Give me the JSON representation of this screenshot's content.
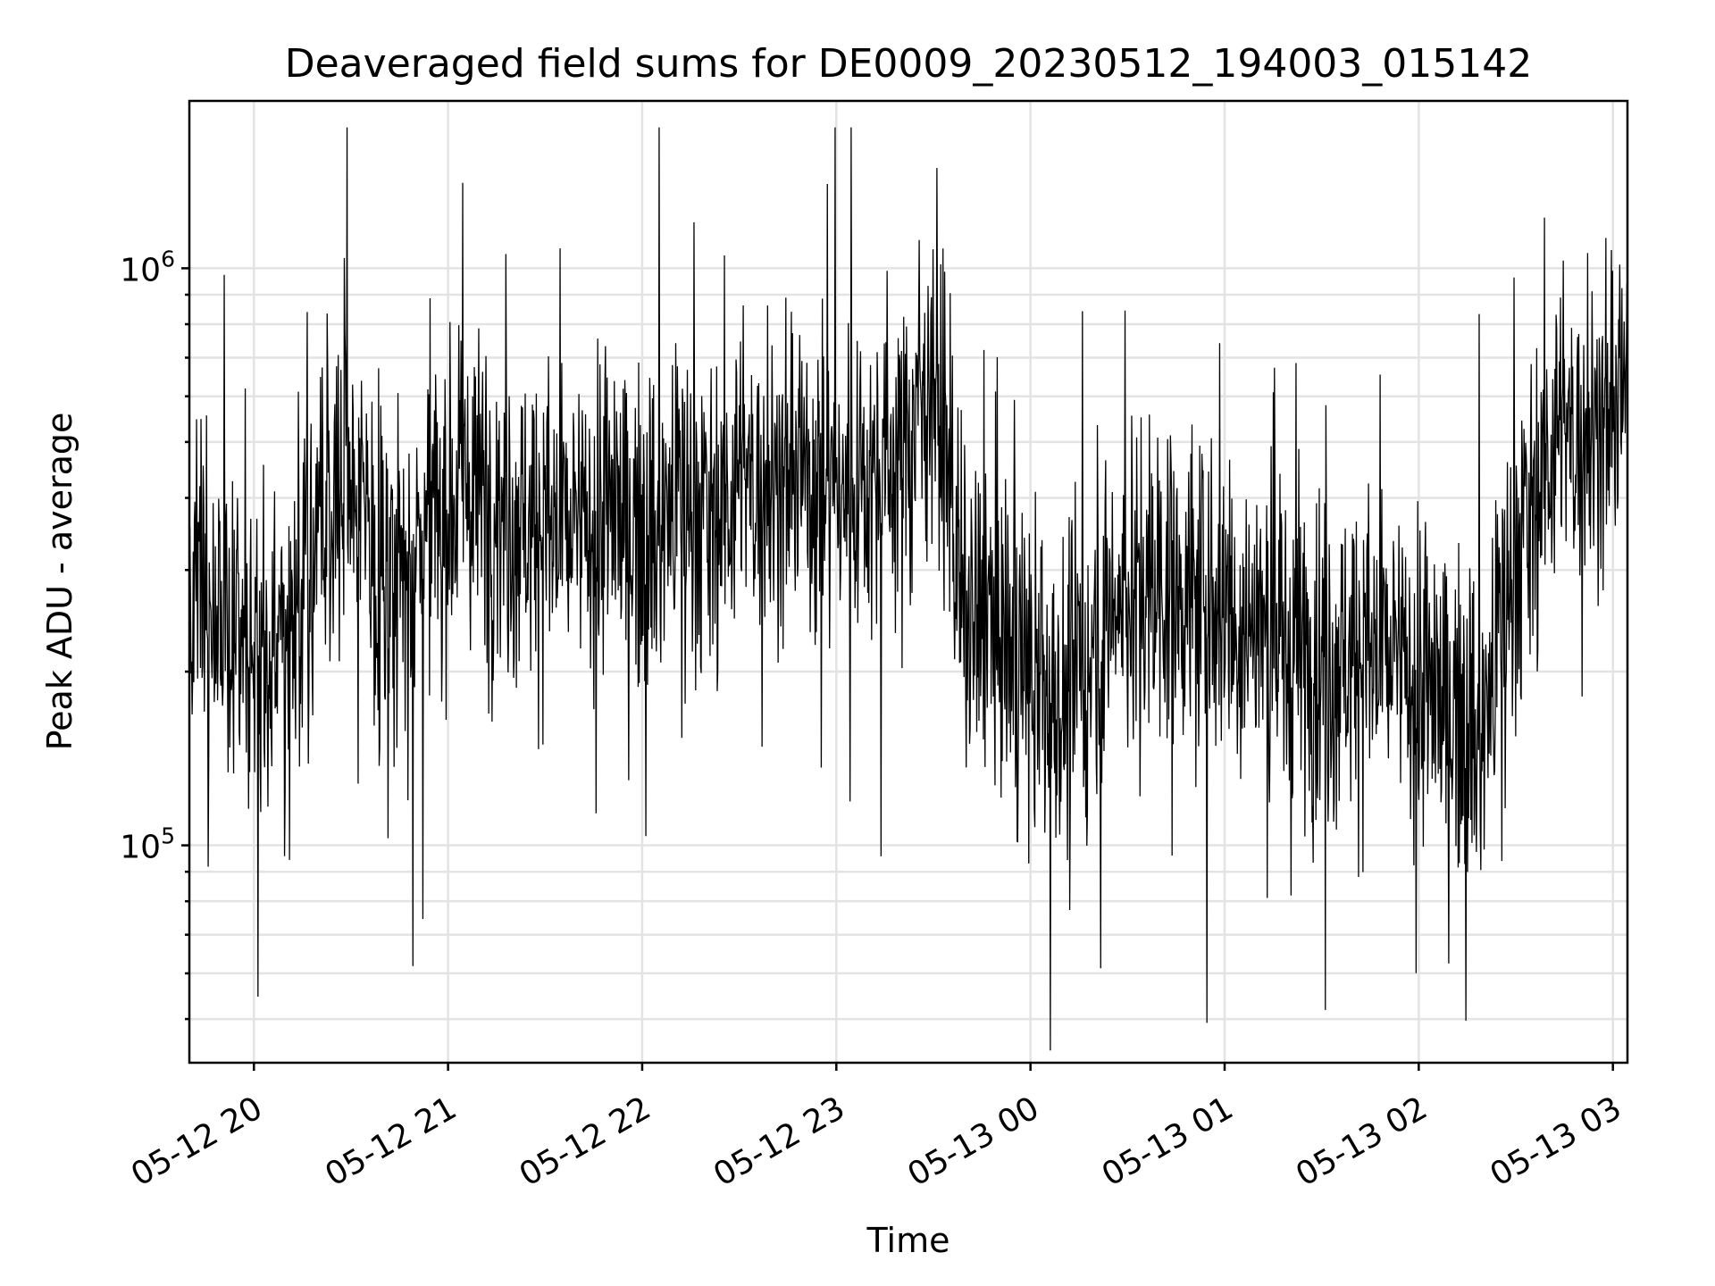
{
  "chart_data": {
    "type": "line",
    "title": "Deaveraged field sums for DE0009_20230512_194003_015142",
    "xlabel": "Time",
    "ylabel": "Peak ADU - average",
    "yscale": "log",
    "ylim": [
      42000,
      1950000
    ],
    "xlim": [
      "2023-05-12 19:40:03",
      "2023-05-13 03:04:30"
    ],
    "grid": true,
    "x_ticks": [
      {
        "value": "2023-05-12 20:00",
        "label": "05-12 20"
      },
      {
        "value": "2023-05-12 21:00",
        "label": "05-12 21"
      },
      {
        "value": "2023-05-12 22:00",
        "label": "05-12 22"
      },
      {
        "value": "2023-05-12 23:00",
        "label": "05-12 23"
      },
      {
        "value": "2023-05-13 00:00",
        "label": "05-13 00"
      },
      {
        "value": "2023-05-13 01:00",
        "label": "05-13 01"
      },
      {
        "value": "2023-05-13 02:00",
        "label": "05-13 02"
      },
      {
        "value": "2023-05-13 03:00",
        "label": "05-13 03"
      }
    ],
    "y_ticks": [
      {
        "value": 100000,
        "base": "10",
        "exp": "5"
      },
      {
        "value": 1000000,
        "base": "10",
        "exp": "6"
      }
    ],
    "series": [
      {
        "color": "#000000",
        "x": [
          "2023-05-12 19:40",
          "2023-05-12 19:50",
          "2023-05-12 20:00",
          "2023-05-12 20:10",
          "2023-05-12 20:20",
          "2023-05-12 20:30",
          "2023-05-12 20:40",
          "2023-05-12 20:50",
          "2023-05-12 21:00",
          "2023-05-12 21:10",
          "2023-05-12 21:20",
          "2023-05-12 21:30",
          "2023-05-12 21:40",
          "2023-05-12 21:50",
          "2023-05-12 22:00",
          "2023-05-12 22:10",
          "2023-05-12 22:20",
          "2023-05-12 22:30",
          "2023-05-12 22:40",
          "2023-05-12 22:50",
          "2023-05-12 23:00",
          "2023-05-12 23:10",
          "2023-05-12 23:20",
          "2023-05-12 23:30",
          "2023-05-12 23:40",
          "2023-05-12 23:50",
          "2023-05-13 00:00",
          "2023-05-13 00:10",
          "2023-05-13 00:20",
          "2023-05-13 00:30",
          "2023-05-13 00:40",
          "2023-05-13 00:50",
          "2023-05-13 01:00",
          "2023-05-13 01:10",
          "2023-05-13 01:20",
          "2023-05-13 01:30",
          "2023-05-13 01:40",
          "2023-05-13 01:50",
          "2023-05-13 02:00",
          "2023-05-13 02:10",
          "2023-05-13 02:20",
          "2023-05-13 02:30",
          "2023-05-13 02:40",
          "2023-05-13 02:50",
          "2023-05-13 03:00",
          "2023-05-13 03:04"
        ],
        "y": [
          280000,
          230000,
          210000,
          230000,
          380000,
          420000,
          300000,
          330000,
          400000,
          410000,
          380000,
          360000,
          340000,
          380000,
          340000,
          390000,
          380000,
          420000,
          430000,
          440000,
          420000,
          440000,
          470000,
          700000,
          230000,
          240000,
          190000,
          170000,
          230000,
          280000,
          290000,
          270000,
          260000,
          240000,
          220000,
          210000,
          220000,
          210000,
          190000,
          170000,
          160000,
          320000,
          490000,
          520000,
          560000,
          600000
        ]
      }
    ]
  }
}
